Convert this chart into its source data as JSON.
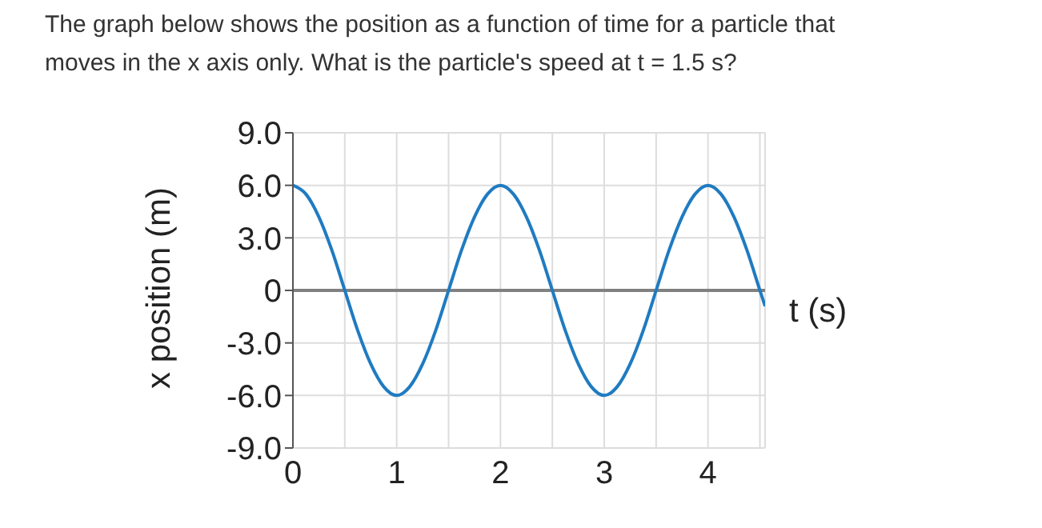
{
  "chart_data": {
    "type": "line",
    "title": "The graph below shows the position as a function of time for a particle that moves in the x axis only. What is the particle's speed at t = 1.5 s?",
    "xlabel": "t (s)",
    "ylabel": "x position (m)",
    "x": [
      0,
      0.125,
      0.25,
      0.375,
      0.5,
      0.625,
      0.75,
      0.875,
      1,
      1.125,
      1.25,
      1.375,
      1.5,
      1.625,
      1.75,
      1.875,
      2,
      2.125,
      2.25,
      2.375,
      2.5,
      2.625,
      2.75,
      2.875,
      3,
      3.125,
      3.25,
      3.375,
      3.5,
      3.625,
      3.75,
      3.875,
      4,
      4.125,
      4.25,
      4.375,
      4.5,
      4.55
    ],
    "series": [
      {
        "color": "#1f7bc1",
        "values": [
          6,
          5.5,
          4.2,
          2.3,
          0,
          -2.3,
          -4.2,
          -5.5,
          -6,
          -5.5,
          -4.2,
          -2.3,
          0,
          2.3,
          4.2,
          5.5,
          6,
          5.5,
          4.2,
          2.3,
          0,
          -2.3,
          -4.2,
          -5.5,
          -6,
          -5.5,
          -4.2,
          -2.3,
          0,
          2.3,
          4.2,
          5.5,
          6,
          5.5,
          4.2,
          2.3,
          0,
          -0.9
        ]
      }
    ],
    "xlim": [
      0,
      4.55
    ],
    "xticks": [
      0,
      {
        "value": 0.5,
        "label": null
      },
      1,
      {
        "value": 1.5,
        "label": null
      },
      2,
      {
        "value": 2.5,
        "label": null
      },
      3,
      {
        "value": 3.5,
        "label": null
      },
      4,
      {
        "value": 4.5,
        "label": null
      }
    ],
    "ylim": [
      -9,
      9
    ],
    "yticks": [
      {
        "value": -9,
        "label": "-9.0"
      },
      {
        "value": -6,
        "label": "-6.0"
      },
      {
        "value": -3,
        "label": "-3.0"
      },
      0,
      {
        "value": 3,
        "label": "3.0"
      },
      {
        "value": 6,
        "label": "6.0"
      },
      {
        "value": 9,
        "label": "9.0"
      }
    ],
    "ref_lines": [
      {
        "axis": "y",
        "value": 0,
        "color": "#808080"
      }
    ],
    "grid": true,
    "marker": "none",
    "line_style": "solid"
  }
}
